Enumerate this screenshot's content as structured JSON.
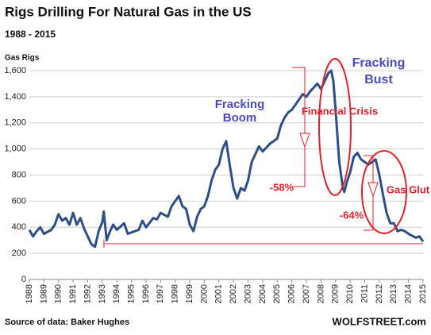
{
  "chart_data": {
    "type": "line",
    "title": "Rigs Drilling For Natural Gas in the US",
    "subtitle": "1988 - 2015",
    "y_label": "Gas Rigs",
    "source": "Source of data: Baker Hughes",
    "credit": "WOLFSTREET.com",
    "annotations": [
      {
        "text": "Fracking",
        "color": "#4a4ac0"
      },
      {
        "text": "Boom",
        "color": "#4a4ac0"
      },
      {
        "text": "Fracking",
        "color": "#4a4ac0"
      },
      {
        "text": "Bust",
        "color": "#4a4ac0"
      },
      {
        "text": "Financial Crisis",
        "color": "#e0202a"
      },
      {
        "text": "-58%",
        "color": "#e0202a"
      },
      {
        "text": "Gas Glut",
        "color": "#e0202a"
      },
      {
        "text": "-64%",
        "color": "#e0202a"
      }
    ],
    "xlim": [
      1988,
      2015
    ],
    "xticks": [
      1988,
      1989,
      1990,
      1991,
      1992,
      1993,
      1994,
      1995,
      1996,
      1997,
      1998,
      1999,
      2000,
      2001,
      2002,
      2003,
      2004,
      2005,
      2006,
      2007,
      2008,
      2009,
      2010,
      2011,
      2012,
      2013,
      2014,
      2015
    ],
    "ylim": [
      0,
      1600
    ],
    "yticks": [
      0,
      200,
      400,
      600,
      800,
      {
        "value": 1000,
        "label": "1,000"
      },
      {
        "value": 1200,
        "label": "1,200"
      },
      {
        "value": 1400,
        "label": "1,400"
      },
      {
        "value": 1600,
        "label": "1,600"
      }
    ],
    "grid": true,
    "series": [
      {
        "name": "Gas Rigs",
        "color": "#2d4f86",
        "x": [
          1988,
          1988.25,
          1988.5,
          1988.75,
          1989,
          1989.5,
          1989.75,
          1990,
          1990.25,
          1990.5,
          1990.75,
          1991,
          1991.25,
          1991.5,
          1991.75,
          1992,
          1992.25,
          1992.5,
          1992.75,
          1993,
          1993.1,
          1993.3,
          1993.5,
          1993.75,
          1994,
          1994.5,
          1994.75,
          1995,
          1995.5,
          1995.75,
          1996,
          1996.5,
          1996.75,
          1997,
          1997.5,
          1997.75,
          1998,
          1998.25,
          1998.5,
          1998.75,
          1999,
          1999.25,
          1999.5,
          1999.75,
          2000,
          2000.25,
          2000.5,
          2000.75,
          2001,
          2001.25,
          2001.5,
          2001.75,
          2002,
          2002.25,
          2002.5,
          2002.75,
          2003,
          2003.25,
          2003.5,
          2003.75,
          2004,
          2004.5,
          2004.75,
          2005,
          2005.25,
          2005.5,
          2005.75,
          2006,
          2006.5,
          2006.75,
          2007,
          2007.25,
          2007.5,
          2007.75,
          2008,
          2008.25,
          2008.5,
          2008.7,
          2008.85,
          2009,
          2009.25,
          2009.5,
          2009.6,
          2009.75,
          2010,
          2010.25,
          2010.5,
          2010.75,
          2011,
          2011.25,
          2011.5,
          2011.75,
          2012,
          2012.25,
          2012.5,
          2012.75,
          2013,
          2013.25,
          2013.5,
          2013.75,
          2014,
          2014.5,
          2014.75,
          2015
        ],
        "values": [
          380,
          330,
          370,
          400,
          350,
          380,
          420,
          500,
          450,
          470,
          420,
          510,
          420,
          470,
          390,
          330,
          270,
          250,
          370,
          440,
          520,
          300,
          360,
          420,
          380,
          430,
          350,
          360,
          380,
          450,
          400,
          470,
          460,
          510,
          480,
          560,
          600,
          640,
          560,
          540,
          420,
          370,
          480,
          540,
          560,
          640,
          760,
          840,
          880,
          1000,
          1060,
          870,
          700,
          620,
          700,
          680,
          760,
          900,
          960,
          1020,
          980,
          1040,
          1060,
          1080,
          1180,
          1240,
          1280,
          1300,
          1380,
          1420,
          1400,
          1440,
          1470,
          1500,
          1460,
          1520,
          1580,
          1600,
          1520,
          1300,
          900,
          700,
          670,
          740,
          820,
          940,
          970,
          920,
          900,
          880,
          900,
          920,
          800,
          650,
          510,
          430,
          430,
          370,
          380,
          370,
          350,
          320,
          330,
          290
        ]
      }
    ]
  }
}
